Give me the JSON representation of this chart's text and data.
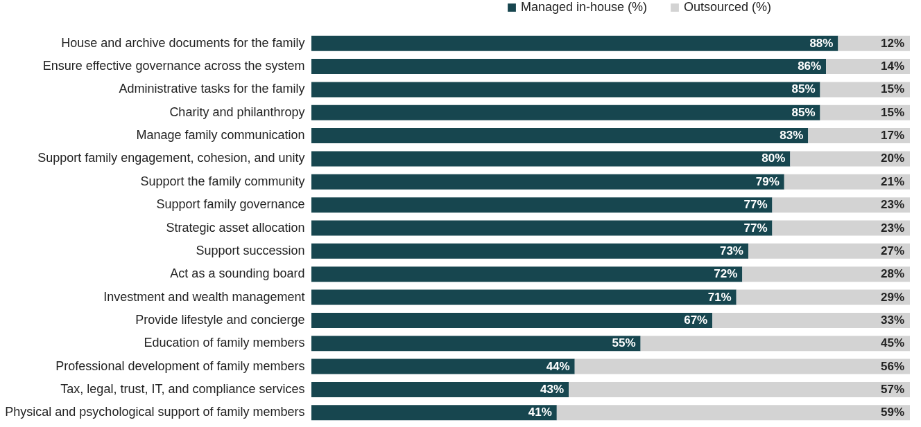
{
  "chart_data": {
    "type": "bar",
    "orientation": "horizontal",
    "stacked": true,
    "legend": "top right",
    "tick_labels": "y",
    "categories": [
      "House and archive documents for the family",
      "Ensure effective governance across the system",
      "Administrative tasks for the family",
      "Charity and philanthropy",
      "Manage family communication",
      "Support family engagement, cohesion, and unity",
      "Support the family community",
      "Support family governance",
      "Strategic asset allocation",
      "Support succession",
      "Act as a sounding board",
      "Investment and wealth management",
      "Provide lifestyle and concierge",
      "Education of family members",
      "Professional development of family members",
      "Tax, legal, trust, IT, and compliance services",
      "Physical and psychological support of family members"
    ],
    "series": [
      {
        "name": "Managed in-house (%)",
        "color": "#17464f",
        "values": [
          88,
          86,
          85,
          85,
          83,
          80,
          79,
          77,
          77,
          73,
          72,
          71,
          67,
          55,
          44,
          43,
          41
        ],
        "value_labels": [
          "88%",
          "86%",
          "85%",
          "85%",
          "83%",
          "80%",
          "79%",
          "77%",
          "77%",
          "73%",
          "72%",
          "71%",
          "67%",
          "55%",
          "44%",
          "43%",
          "41%"
        ]
      },
      {
        "name": "Outsourced (%)",
        "color": "#d3d3d3",
        "values": [
          12,
          14,
          15,
          15,
          17,
          20,
          21,
          23,
          23,
          27,
          28,
          29,
          33,
          45,
          56,
          57,
          59
        ],
        "value_labels": [
          "12%",
          "14%",
          "15%",
          "15%",
          "17%",
          "20%",
          "21%",
          "23%",
          "23%",
          "27%",
          "28%",
          "29%",
          "33%",
          "45%",
          "56%",
          "57%",
          "59%"
        ]
      }
    ]
  }
}
